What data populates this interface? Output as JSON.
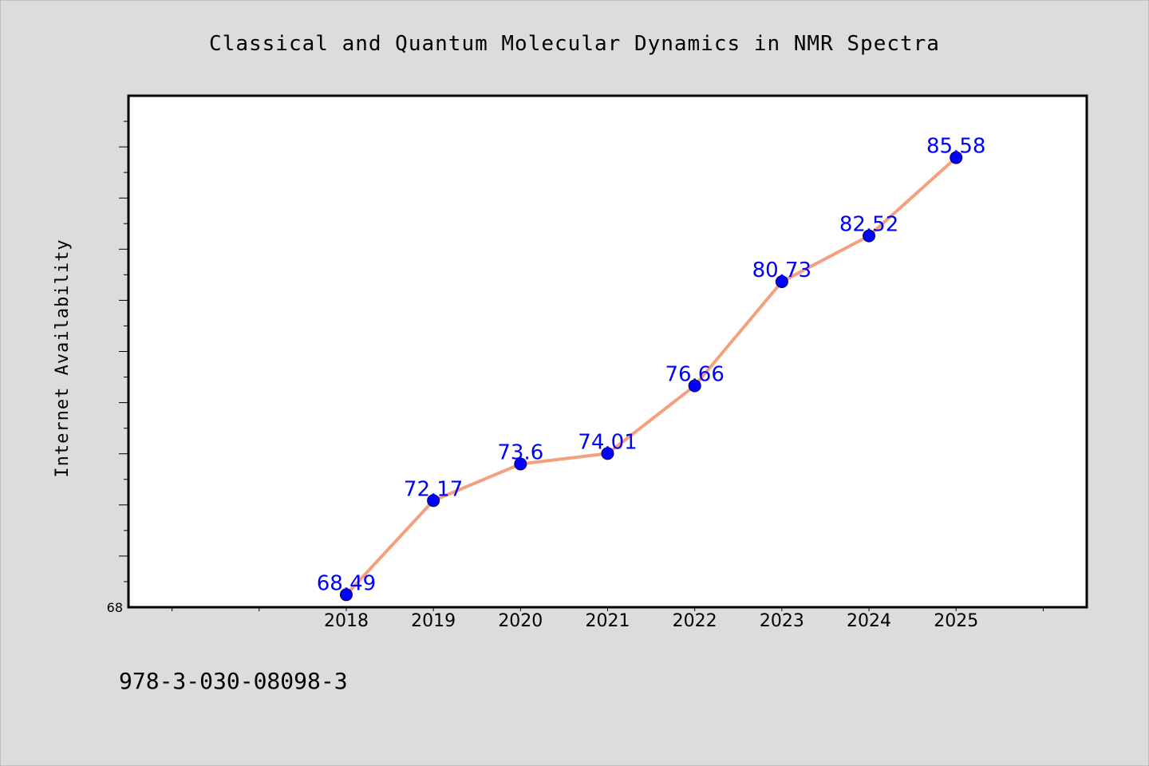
{
  "footer": {
    "isbn": "978-3-030-08098-3"
  },
  "colors": {
    "background": "#dcdcdc",
    "plot_background": "#ffffff",
    "line": "#f4a07f",
    "marker": "#0000ff",
    "data_label": "#0000ff"
  },
  "chart_data": {
    "type": "line",
    "title": "Classical and Quantum Molecular Dynamics in NMR Spectra",
    "xlabel": "",
    "ylabel": "Internet Availability",
    "x": [
      2018,
      2019,
      2020,
      2021,
      2022,
      2023,
      2024,
      2025
    ],
    "x_tick_labels": [
      "2018",
      "2019",
      "2020",
      "2021",
      "2022",
      "2023",
      "2024",
      "2025"
    ],
    "xlim": [
      2015.5,
      2026.5
    ],
    "ylim": [
      68,
      88
    ],
    "y_tick_label": "68",
    "grid": false,
    "series": [
      {
        "values": [
          68.49,
          72.17,
          73.6,
          74.01,
          76.66,
          80.73,
          82.52,
          85.58
        ],
        "labels": [
          "68.49",
          "72.17",
          "73.6",
          "74.01",
          "76.66",
          "80.73",
          "82.52",
          "85.58"
        ]
      }
    ]
  }
}
